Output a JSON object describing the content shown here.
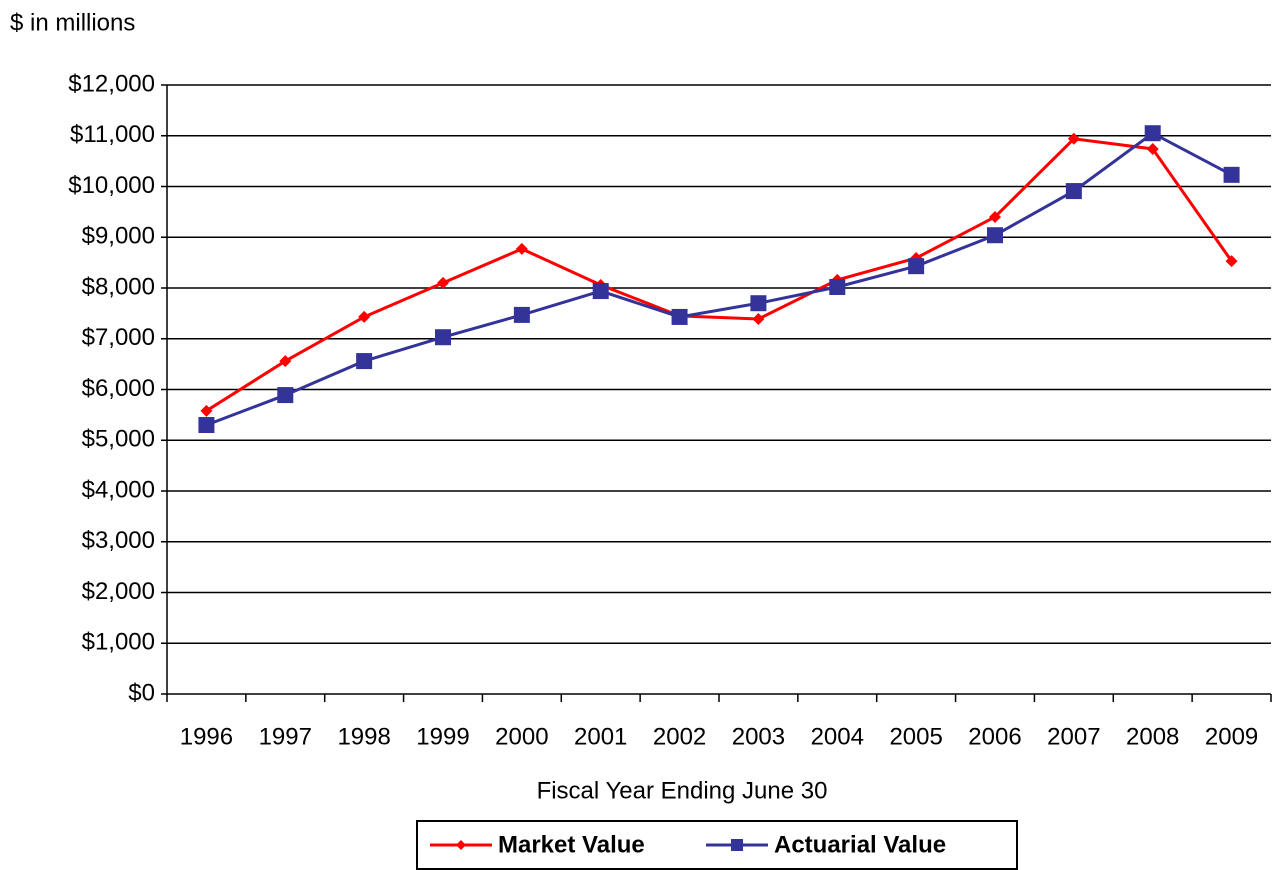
{
  "chart_data": {
    "type": "line",
    "ylabel": "$ in millions",
    "xlabel": "Fiscal Year Ending June 30",
    "categories": [
      "1996",
      "1997",
      "1998",
      "1999",
      "2000",
      "2001",
      "2002",
      "2003",
      "2004",
      "2005",
      "2006",
      "2007",
      "2008",
      "2009"
    ],
    "series": [
      {
        "name": "Market Value",
        "color": "#ff0000",
        "marker": "diamond",
        "values": [
          5580,
          6560,
          7430,
          8100,
          8770,
          8060,
          7450,
          7390,
          8160,
          8590,
          9400,
          10940,
          10740,
          8530
        ]
      },
      {
        "name": "Actuarial Value",
        "color": "#333399",
        "marker": "square",
        "values": [
          5300,
          5890,
          6560,
          7030,
          7470,
          7940,
          7430,
          7700,
          8020,
          8430,
          9040,
          9910,
          11050,
          10230
        ]
      }
    ],
    "ylim": [
      0,
      12000
    ],
    "yticks": [
      {
        "value": 0,
        "label": "$0"
      },
      {
        "value": 1000,
        "label": "$1,000"
      },
      {
        "value": 2000,
        "label": "$2,000"
      },
      {
        "value": 3000,
        "label": "$3,000"
      },
      {
        "value": 4000,
        "label": "$4,000"
      },
      {
        "value": 5000,
        "label": "$5,000"
      },
      {
        "value": 6000,
        "label": "$6,000"
      },
      {
        "value": 7000,
        "label": "$7,000"
      },
      {
        "value": 8000,
        "label": "$8,000"
      },
      {
        "value": 9000,
        "label": "$9,000"
      },
      {
        "value": 10000,
        "label": "$10,000"
      },
      {
        "value": 11000,
        "label": "$11,000"
      },
      {
        "value": 12000,
        "label": "$12,000"
      }
    ],
    "grid": true,
    "legend": "bottom"
  }
}
